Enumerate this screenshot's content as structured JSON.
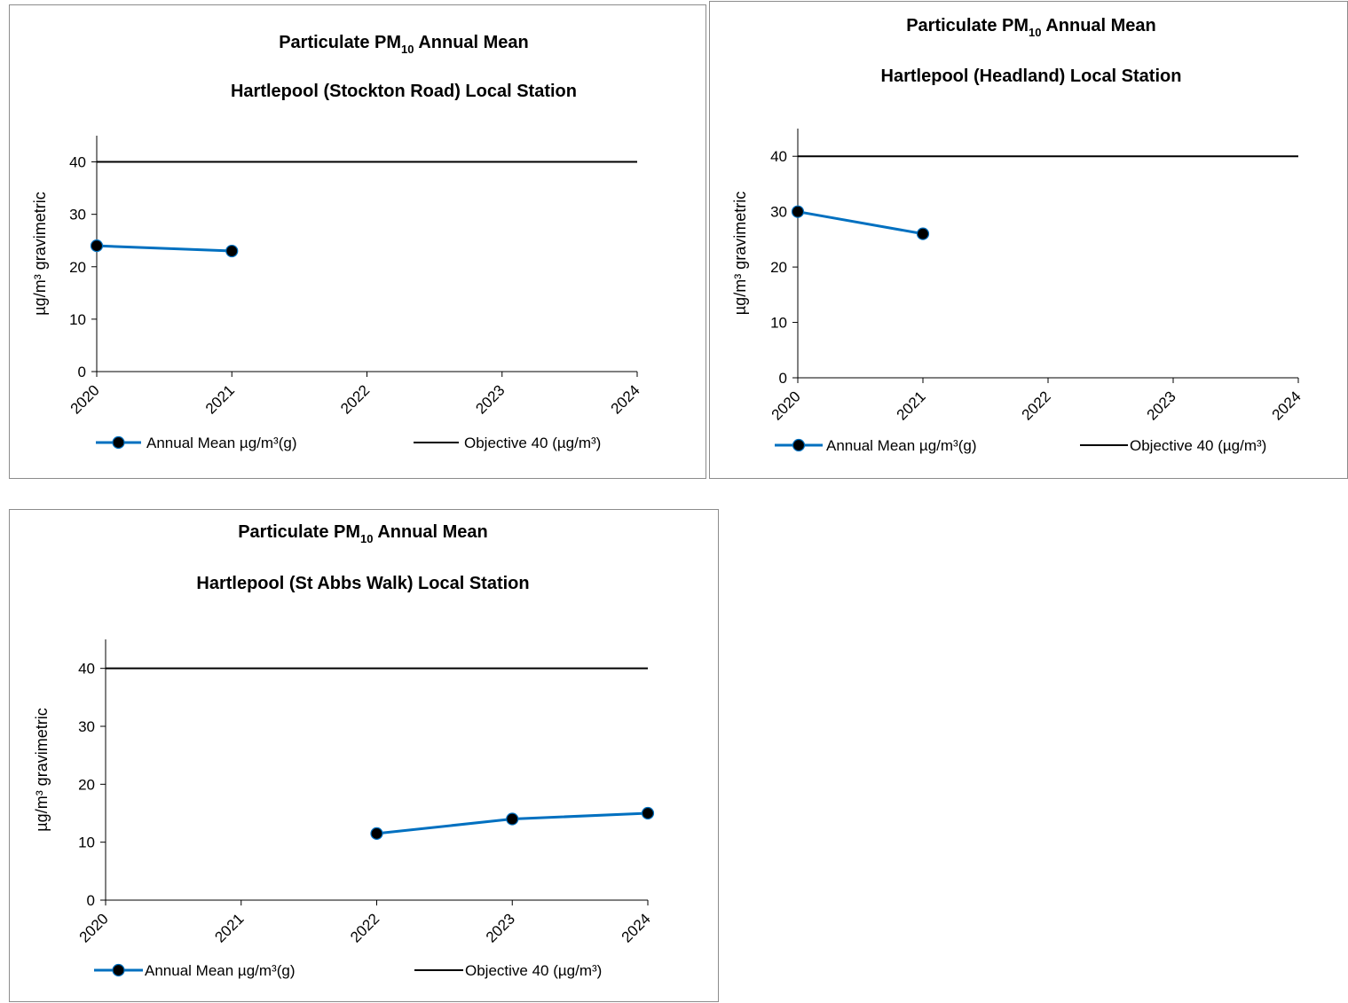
{
  "chart_data": [
    {
      "type": "line",
      "title_main": "Particulate PM",
      "title_sub": "10",
      "title_rest": " Annual Mean",
      "subtitle": "Hartlepool (Stockton Road) Local Station",
      "ylabel": "µg/m³ gravimetric",
      "ylim": [
        0,
        45
      ],
      "yticks": [
        "0",
        "10",
        "20",
        "30",
        "40"
      ],
      "categories": [
        "2020",
        "2021",
        "2022",
        "2023",
        "2024"
      ],
      "series": [
        {
          "name": "Annual Mean µg/m³(g)",
          "values": [
            24,
            23,
            null,
            null,
            null
          ],
          "color": "#0070c0",
          "marker": "circle",
          "marker_fill": "#000000"
        },
        {
          "name": "Objective 40 (µg/m³)",
          "values": [
            40,
            40,
            40,
            40,
            40
          ],
          "color": "#000000",
          "marker": "none"
        }
      ],
      "legend": "bottom",
      "grid": false
    },
    {
      "type": "line",
      "title_main": "Particulate PM",
      "title_sub": "10",
      "title_rest": " Annual Mean",
      "subtitle": "Hartlepool (Headland) Local Station",
      "ylabel": "µg/m³ gravimetric",
      "ylim": [
        0,
        45
      ],
      "yticks": [
        "0",
        "10",
        "20",
        "30",
        "40"
      ],
      "categories": [
        "2020",
        "2021",
        "2022",
        "2023",
        "2024"
      ],
      "series": [
        {
          "name": "Annual Mean µg/m³(g)",
          "values": [
            30,
            26,
            null,
            null,
            null
          ],
          "color": "#0070c0",
          "marker": "circle",
          "marker_fill": "#000000"
        },
        {
          "name": "Objective 40 (µg/m³)",
          "values": [
            40,
            40,
            40,
            40,
            40
          ],
          "color": "#000000",
          "marker": "none"
        }
      ],
      "legend": "bottom",
      "grid": false
    },
    {
      "type": "line",
      "title_main": "Particulate PM",
      "title_sub": "10",
      "title_rest": " Annual Mean",
      "subtitle": "Hartlepool (St Abbs Walk) Local Station",
      "ylabel": "µg/m³ gravimetric",
      "ylim": [
        0,
        45
      ],
      "yticks": [
        "0",
        "10",
        "20",
        "30",
        "40"
      ],
      "categories": [
        "2020",
        "2021",
        "2022",
        "2023",
        "2024"
      ],
      "series": [
        {
          "name": "Annual Mean µg/m³(g)",
          "values": [
            null,
            null,
            11.5,
            14,
            15
          ],
          "color": "#0070c0",
          "marker": "circle",
          "marker_fill": "#000000"
        },
        {
          "name": "Objective 40 (µg/m³)",
          "values": [
            40,
            40,
            40,
            40,
            40
          ],
          "color": "#000000",
          "marker": "none"
        }
      ],
      "legend": "bottom",
      "grid": false
    }
  ]
}
